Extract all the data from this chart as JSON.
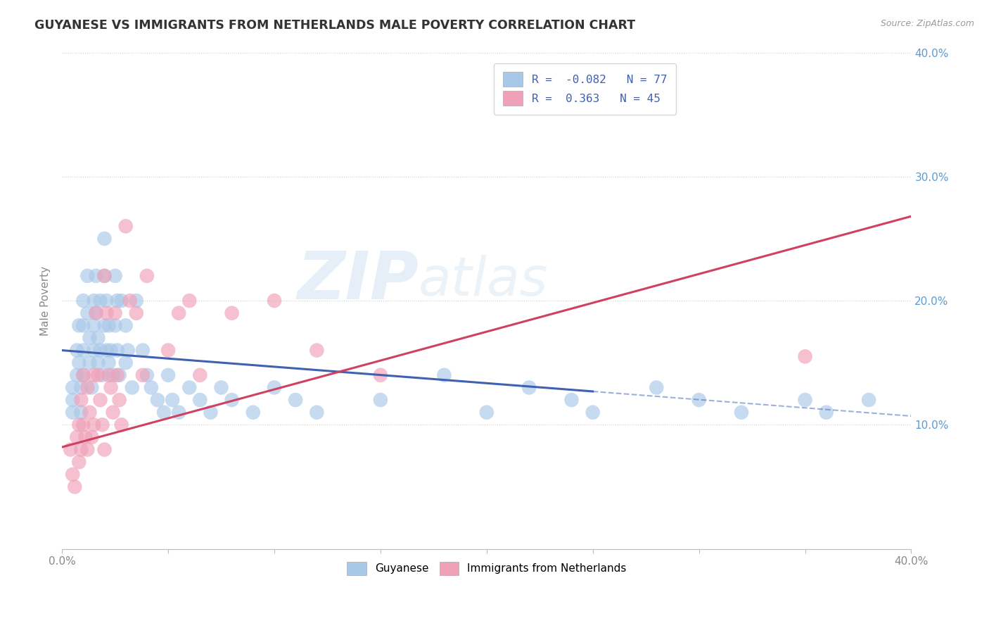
{
  "title": "GUYANESE VS IMMIGRANTS FROM NETHERLANDS MALE POVERTY CORRELATION CHART",
  "source_text": "Source: ZipAtlas.com",
  "ylabel": "Male Poverty",
  "xlim": [
    0.0,
    0.4
  ],
  "ylim": [
    0.0,
    0.4
  ],
  "series": [
    {
      "name": "Guyanese",
      "R": -0.082,
      "N": 77,
      "color": "#a8c8e8",
      "line_color": "#4060b0",
      "line_solid_end": 0.25,
      "line_y_start": 0.16,
      "line_y_end": 0.107
    },
    {
      "name": "Immigrants from Netherlands",
      "R": 0.363,
      "N": 45,
      "color": "#f0a0b8",
      "line_color": "#d04060",
      "line_solid_end": 0.4,
      "line_y_start": 0.082,
      "line_y_end": 0.268
    }
  ],
  "watermark_zip": "ZIP",
  "watermark_atlas": "atlas",
  "background_color": "#ffffff",
  "grid_color": "#cccccc",
  "title_color": "#444444",
  "right_tick_color": "#5b9bd5",
  "blue_scatter": {
    "x": [
      0.005,
      0.005,
      0.005,
      0.007,
      0.007,
      0.008,
      0.008,
      0.009,
      0.009,
      0.01,
      0.01,
      0.01,
      0.01,
      0.012,
      0.012,
      0.013,
      0.013,
      0.014,
      0.015,
      0.015,
      0.015,
      0.016,
      0.016,
      0.017,
      0.017,
      0.018,
      0.018,
      0.019,
      0.02,
      0.02,
      0.02,
      0.021,
      0.021,
      0.022,
      0.022,
      0.023,
      0.024,
      0.025,
      0.025,
      0.026,
      0.026,
      0.027,
      0.028,
      0.03,
      0.03,
      0.031,
      0.033,
      0.035,
      0.038,
      0.04,
      0.042,
      0.045,
      0.048,
      0.05,
      0.052,
      0.055,
      0.06,
      0.065,
      0.07,
      0.075,
      0.08,
      0.09,
      0.1,
      0.11,
      0.12,
      0.15,
      0.18,
      0.2,
      0.22,
      0.24,
      0.25,
      0.28,
      0.3,
      0.32,
      0.35,
      0.36,
      0.38
    ],
    "y": [
      0.13,
      0.12,
      0.11,
      0.16,
      0.14,
      0.18,
      0.15,
      0.13,
      0.11,
      0.2,
      0.18,
      0.16,
      0.14,
      0.22,
      0.19,
      0.17,
      0.15,
      0.13,
      0.2,
      0.18,
      0.16,
      0.22,
      0.19,
      0.17,
      0.15,
      0.2,
      0.16,
      0.14,
      0.25,
      0.22,
      0.18,
      0.2,
      0.16,
      0.18,
      0.15,
      0.16,
      0.14,
      0.22,
      0.18,
      0.2,
      0.16,
      0.14,
      0.2,
      0.18,
      0.15,
      0.16,
      0.13,
      0.2,
      0.16,
      0.14,
      0.13,
      0.12,
      0.11,
      0.14,
      0.12,
      0.11,
      0.13,
      0.12,
      0.11,
      0.13,
      0.12,
      0.11,
      0.13,
      0.12,
      0.11,
      0.12,
      0.14,
      0.11,
      0.13,
      0.12,
      0.11,
      0.13,
      0.12,
      0.11,
      0.12,
      0.11,
      0.12
    ]
  },
  "pink_scatter": {
    "x": [
      0.004,
      0.005,
      0.006,
      0.007,
      0.008,
      0.008,
      0.009,
      0.009,
      0.01,
      0.01,
      0.011,
      0.012,
      0.012,
      0.013,
      0.014,
      0.015,
      0.015,
      0.016,
      0.017,
      0.018,
      0.019,
      0.02,
      0.02,
      0.021,
      0.022,
      0.023,
      0.024,
      0.025,
      0.026,
      0.027,
      0.028,
      0.03,
      0.032,
      0.035,
      0.038,
      0.04,
      0.05,
      0.055,
      0.06,
      0.065,
      0.08,
      0.1,
      0.12,
      0.15,
      0.35
    ],
    "y": [
      0.08,
      0.06,
      0.05,
      0.09,
      0.1,
      0.07,
      0.12,
      0.08,
      0.14,
      0.1,
      0.09,
      0.13,
      0.08,
      0.11,
      0.09,
      0.14,
      0.1,
      0.19,
      0.14,
      0.12,
      0.1,
      0.22,
      0.08,
      0.19,
      0.14,
      0.13,
      0.11,
      0.19,
      0.14,
      0.12,
      0.1,
      0.26,
      0.2,
      0.19,
      0.14,
      0.22,
      0.16,
      0.19,
      0.2,
      0.14,
      0.19,
      0.2,
      0.16,
      0.14,
      0.155
    ]
  }
}
